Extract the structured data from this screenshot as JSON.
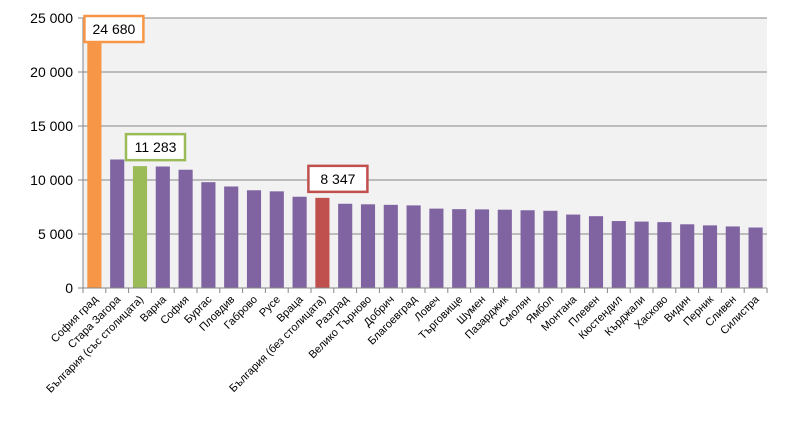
{
  "chart_data": {
    "type": "bar",
    "title": "",
    "xlabel": "",
    "ylabel": "",
    "ylim": [
      0,
      25000
    ],
    "yticks": [
      0,
      5000,
      10000,
      15000,
      20000,
      25000
    ],
    "ytick_labels": [
      "0",
      "5 000",
      "10 000",
      "15 000",
      "20 000",
      "25 000"
    ],
    "grid": true,
    "categories": [
      "София град",
      "Стара Загора",
      "България (със столицата)",
      "Варна",
      "София",
      "Бургас",
      "Пловдив",
      "Габрово",
      "Русе",
      "Враца",
      "България (без столицата)",
      "Разград",
      "Велико Търново",
      "Добрич",
      "Благоевград",
      "Ловеч",
      "Търговище",
      "Шумен",
      "Пазарджик",
      "Смолян",
      "Ямбол",
      "Монтана",
      "Плевен",
      "Кюстендил",
      "Кърджали",
      "Хасково",
      "Видин",
      "Перник",
      "Сливен",
      "Силистра"
    ],
    "values": [
      24680,
      11900,
      11283,
      11250,
      10950,
      9800,
      9400,
      9050,
      8950,
      8450,
      8347,
      7800,
      7750,
      7700,
      7650,
      7350,
      7300,
      7280,
      7250,
      7200,
      7150,
      6800,
      6650,
      6200,
      6150,
      6100,
      5900,
      5800,
      5700,
      5600
    ],
    "colors": {
      "default": "#8064a2",
      "highlight_capital": "#f79646",
      "highlight_national": "#9bbb59",
      "highlight_no_capital": "#c0504d",
      "plot_background": "#f2f2f2",
      "grid": "#868686"
    },
    "bar_colors": [
      "#f79646",
      "#8064a2",
      "#9bbb59",
      "#8064a2",
      "#8064a2",
      "#8064a2",
      "#8064a2",
      "#8064a2",
      "#8064a2",
      "#8064a2",
      "#c0504d",
      "#8064a2",
      "#8064a2",
      "#8064a2",
      "#8064a2",
      "#8064a2",
      "#8064a2",
      "#8064a2",
      "#8064a2",
      "#8064a2",
      "#8064a2",
      "#8064a2",
      "#8064a2",
      "#8064a2",
      "#8064a2",
      "#8064a2",
      "#8064a2",
      "#8064a2",
      "#8064a2",
      "#8064a2"
    ],
    "annotations": [
      {
        "category": "София град",
        "text": "24 680",
        "border": "#f79646"
      },
      {
        "category": "България (със столицата)",
        "text": "11 283",
        "border": "#9bbb59"
      },
      {
        "category": "България (без столицата)",
        "text": "8 347",
        "border": "#c0504d"
      }
    ]
  }
}
